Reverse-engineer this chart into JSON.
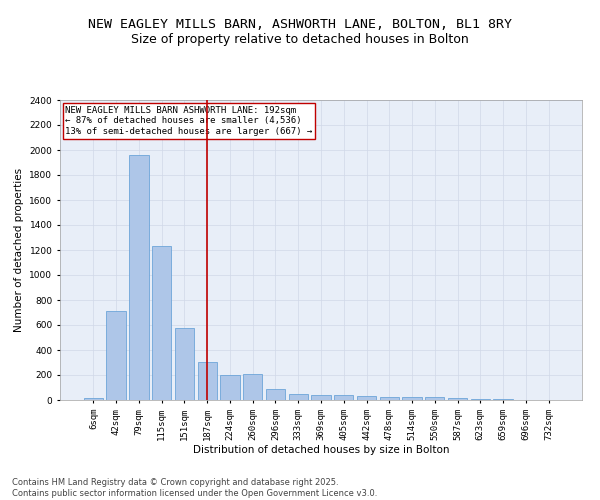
{
  "title": "NEW EAGLEY MILLS BARN, ASHWORTH LANE, BOLTON, BL1 8RY",
  "subtitle": "Size of property relative to detached houses in Bolton",
  "xlabel": "Distribution of detached houses by size in Bolton",
  "ylabel": "Number of detached properties",
  "categories": [
    "6sqm",
    "42sqm",
    "79sqm",
    "115sqm",
    "151sqm",
    "187sqm",
    "224sqm",
    "260sqm",
    "296sqm",
    "333sqm",
    "369sqm",
    "405sqm",
    "442sqm",
    "478sqm",
    "514sqm",
    "550sqm",
    "587sqm",
    "623sqm",
    "659sqm",
    "696sqm",
    "732sqm"
  ],
  "values": [
    18,
    710,
    1960,
    1235,
    575,
    305,
    200,
    205,
    85,
    50,
    40,
    40,
    35,
    22,
    22,
    22,
    20,
    6,
    5,
    3,
    2
  ],
  "bar_color": "#aec6e8",
  "bar_edge_color": "#5b9bd5",
  "vline_x_index": 5,
  "vline_color": "#c00000",
  "annotation_text": "NEW EAGLEY MILLS BARN ASHWORTH LANE: 192sqm\n← 87% of detached houses are smaller (4,536)\n13% of semi-detached houses are larger (667) →",
  "annotation_box_color": "#c00000",
  "ylim": [
    0,
    2400
  ],
  "yticks": [
    0,
    200,
    400,
    600,
    800,
    1000,
    1200,
    1400,
    1600,
    1800,
    2000,
    2200,
    2400
  ],
  "grid_color": "#d0d8e8",
  "background_color": "#e8eef8",
  "footer_line1": "Contains HM Land Registry data © Crown copyright and database right 2025.",
  "footer_line2": "Contains public sector information licensed under the Open Government Licence v3.0.",
  "title_fontsize": 9.5,
  "subtitle_fontsize": 9,
  "axis_label_fontsize": 7.5,
  "tick_fontsize": 6.5,
  "annotation_fontsize": 6.5,
  "footer_fontsize": 6
}
